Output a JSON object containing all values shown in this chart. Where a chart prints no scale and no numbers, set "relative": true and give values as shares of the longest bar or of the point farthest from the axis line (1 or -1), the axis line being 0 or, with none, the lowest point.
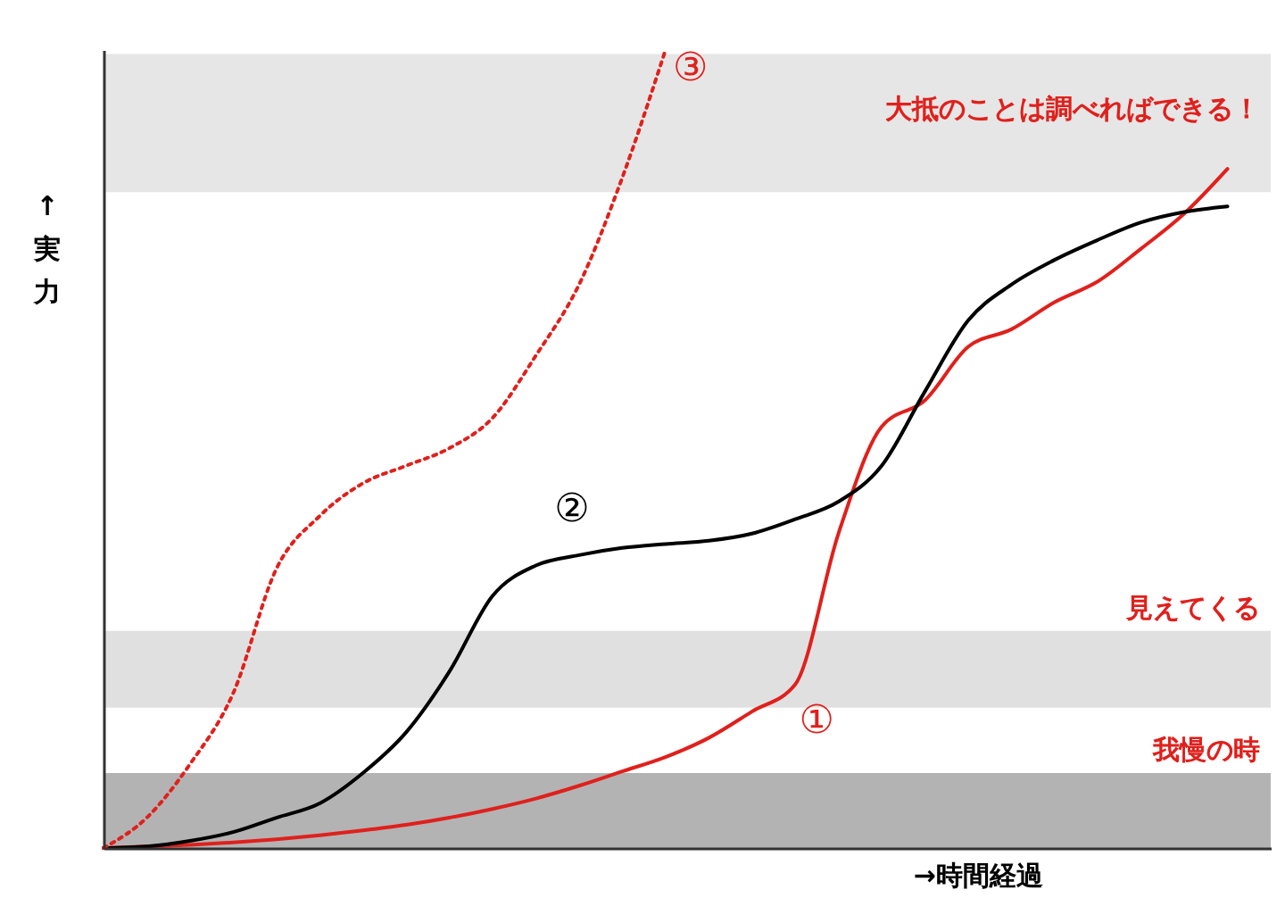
{
  "chart_data": {
    "type": "line",
    "relative": true,
    "xlabel": "→時間経過",
    "ylabel": "↑実力",
    "categories": [
      null,
      null,
      null,
      null,
      null,
      null,
      null,
      null,
      null,
      null,
      null,
      null,
      null,
      null,
      null,
      null,
      null,
      null,
      null,
      null,
      null,
      null,
      null,
      null,
      null,
      null,
      null,
      null
    ],
    "series": [
      {
        "name": "①",
        "color": "#e0201c",
        "line_style": "solid",
        "values": [
          0,
          0.002,
          0.004,
          0.007,
          0.011,
          0.016,
          0.022,
          0.029,
          0.038,
          0.049,
          0.062,
          0.078,
          0.096,
          0.114,
          0.138,
          0.171,
          0.205,
          0.394,
          0.528,
          0.561,
          0.628,
          0.65,
          0.684,
          0.71,
          0.751,
          0.795,
          0.851,
          null
        ]
      },
      {
        "name": "②",
        "color": "#000000",
        "line_style": "solid",
        "values": [
          0,
          0.002,
          0.009,
          0.02,
          0.038,
          0.056,
          0.094,
          0.145,
          0.221,
          0.316,
          0.354,
          0.367,
          0.376,
          0.381,
          0.385,
          0.394,
          0.412,
          0.434,
          0.479,
          0.572,
          0.661,
          0.706,
          0.737,
          0.762,
          0.784,
          0.797,
          0.804,
          null
        ]
      },
      {
        "name": "③",
        "color": "#e0201c",
        "line_style": "dotted",
        "values": [
          0,
          0.038,
          0.105,
          0.194,
          0.35,
          0.416,
          0.457,
          0.479,
          0.501,
          0.539,
          0.617,
          0.706,
          0.84,
          1,
          null,
          null,
          null,
          null,
          null,
          null,
          null,
          null,
          null,
          null,
          null,
          null,
          null,
          null
        ]
      }
    ],
    "bands": [
      {
        "axis": "y",
        "from": 0.822,
        "to": 0.995,
        "label": "大抵のことは調べればできる！",
        "color": "#e6e6e6"
      },
      {
        "axis": "y",
        "from": 0.176,
        "to": 0.272,
        "label": "見えてくる",
        "color": "#e0e0e0"
      },
      {
        "axis": "y",
        "from": 0,
        "to": 0.094,
        "label": "我慢の時",
        "color": "#b3b3b3"
      }
    ],
    "grid": false
  }
}
